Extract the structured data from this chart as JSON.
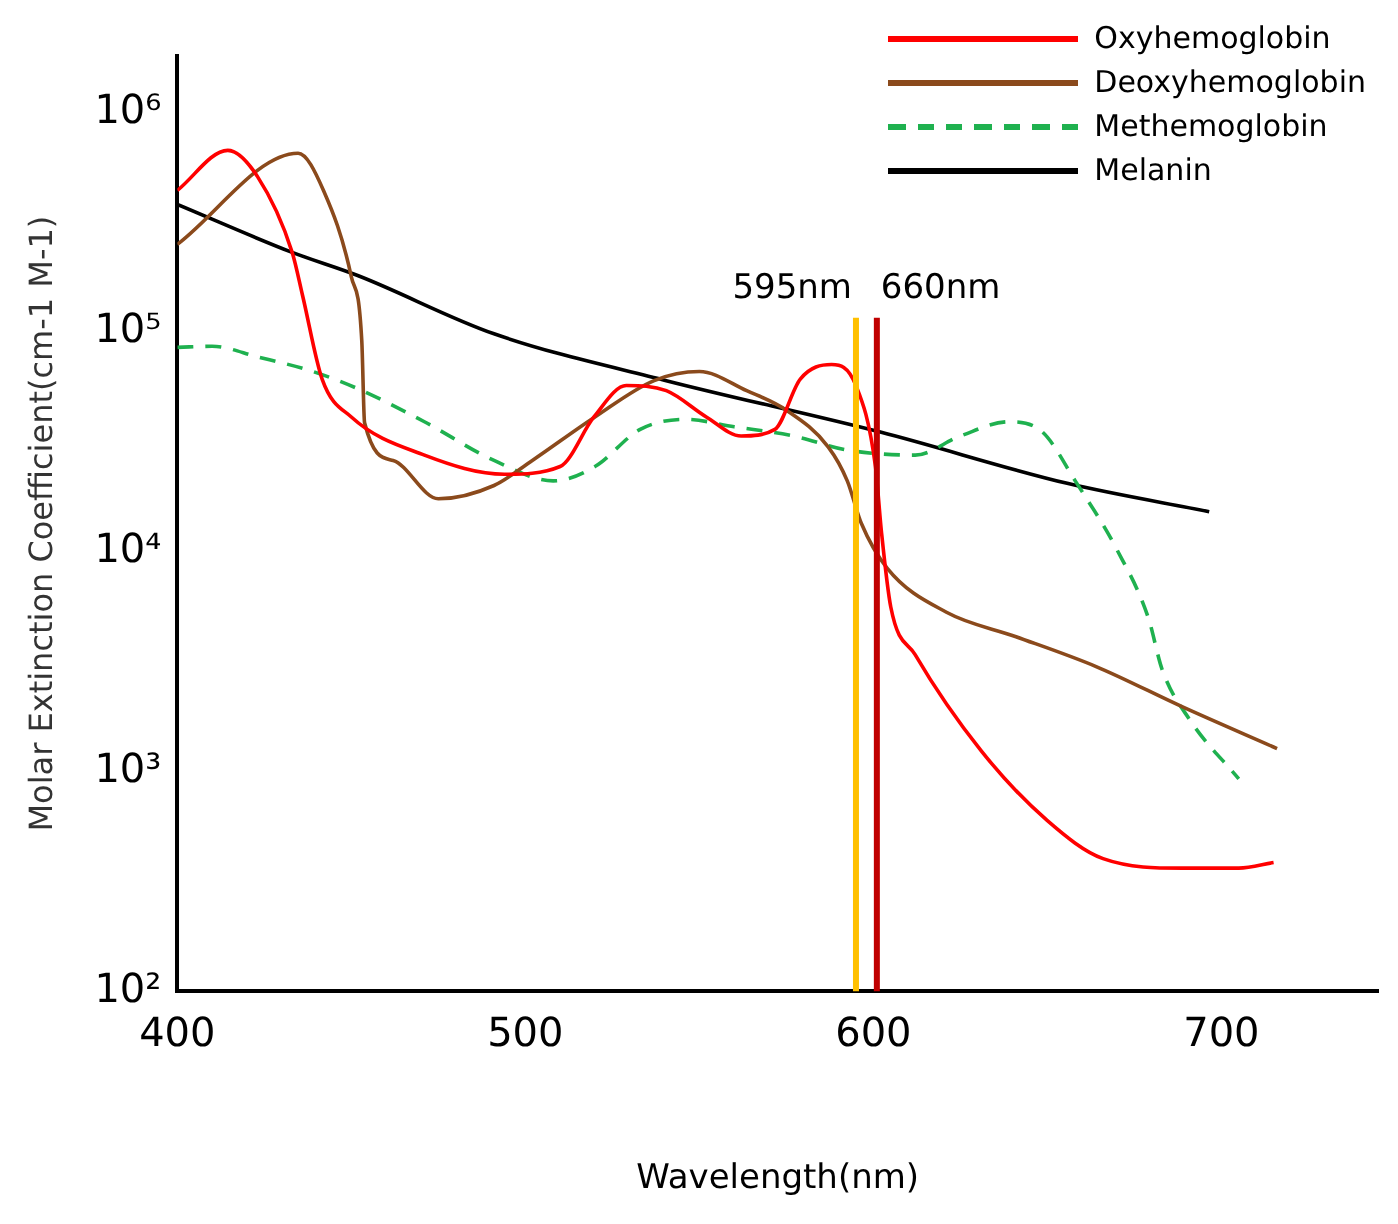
{
  "chart_data": {
    "type": "line",
    "xlabel": "Wavelength(nm)",
    "ylabel": "Molar Extinction Coefficient(cm-1 M-1)",
    "xlim": [
      400,
      745
    ],
    "xticks": [
      400,
      500,
      600,
      700
    ],
    "ylim": [
      100,
      1800000
    ],
    "yticks": [
      {
        "value": 100,
        "label": "10²"
      },
      {
        "value": 1000,
        "label": "10³"
      },
      {
        "value": 10000,
        "label": "10⁴"
      },
      {
        "value": 100000,
        "label": "10⁵"
      },
      {
        "value": 1000000,
        "label": "10⁶"
      }
    ],
    "log": "y",
    "grid": false,
    "legend": "top right",
    "marker": "none",
    "series": [
      {
        "name": "Oxyhemoglobin",
        "color": "#ff0000",
        "line_style": "solid",
        "x": [
          400,
          414.5,
          423,
          433,
          436,
          441.6,
          450,
          471,
          494,
          510,
          519.7,
          529,
          540.5,
          552,
          562,
          571.7,
          579,
          588,
          595,
          600.6,
          602.3,
          605,
          612,
          631,
          650,
          666,
          689,
          705,
          715
        ],
        "values": [
          440000,
          670000,
          510000,
          230000,
          146000,
          61000,
          41000,
          27500,
          22500,
          24400,
          41000,
          57000,
          54000,
          41000,
          33600,
          36000,
          61000,
          71000,
          57000,
          24400,
          12400,
          5600,
          3400,
          1240,
          597,
          401,
          363,
          363,
          385
        ]
      },
      {
        "name": "Deoxyhemoglobin",
        "color": "#8b4a1c",
        "line_style": "solid",
        "x": [
          400,
          434.7,
          442,
          450,
          453,
          453.8,
          462,
          475,
          491,
          502,
          520,
          537,
          550,
          563.6,
          575,
          587,
          592.5,
          596.5,
          604,
          621,
          641,
          664,
          689,
          716
        ],
        "values": [
          250000,
          650000,
          440000,
          178000,
          91000,
          38600,
          26000,
          17400,
          20000,
          26000,
          41000,
          60000,
          66000,
          54000,
          44000,
          30000,
          21000,
          13500,
          8400,
          5300,
          4100,
          3000,
          1960,
          1270
        ]
      },
      {
        "name": "Methemoglobin",
        "color": "#1fb14f",
        "line_style": "dashed",
        "x": [
          400,
          410,
          423,
          439,
          452,
          471,
          491,
          508,
          520,
          533,
          546,
          560,
          577,
          592.5,
          612,
          625,
          639,
          648.6,
          658,
          670,
          679,
          683,
          691,
          705
        ],
        "values": [
          85000,
          86000,
          77000,
          66000,
          55000,
          39000,
          26000,
          21000,
          24400,
          36000,
          40000,
          37000,
          33600,
          29000,
          27500,
          33600,
          39000,
          35000,
          21000,
          10200,
          5000,
          2900,
          1710,
          925
        ]
      },
      {
        "name": "Melanin",
        "color": "#000000",
        "line_style": "solid",
        "x": [
          400,
          433,
          452,
          491,
          540.5,
          602,
          656,
          696.5
        ],
        "values": [
          380000,
          230000,
          180000,
          98000,
          60000,
          35000,
          20400,
          15200
        ]
      }
    ],
    "ref_lines": [
      {
        "axis": "x",
        "value": 595,
        "label": "595nm",
        "color": "#ffc000"
      },
      {
        "axis": "x",
        "value": 601,
        "label": "660nm",
        "color": "#c00000"
      }
    ]
  }
}
